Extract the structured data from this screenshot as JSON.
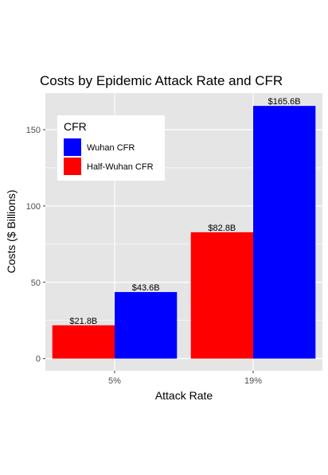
{
  "chart_data": {
    "type": "bar",
    "title": "Costs by Epidemic Attack Rate and CFR",
    "xlabel": "Attack Rate",
    "ylabel": "Costs ($ Billions)",
    "categories": [
      "5%",
      "19%"
    ],
    "ylim": [
      -8,
      174
    ],
    "yticks": [
      0,
      50,
      100,
      150
    ],
    "grid": true,
    "legend": {
      "title": "CFR",
      "placement": "top-left"
    },
    "series": [
      {
        "name": "Half-Wuhan CFR",
        "color": "#ff0000",
        "values": [
          21.8,
          82.8
        ],
        "labels": [
          "$21.8B",
          "$82.8B"
        ]
      },
      {
        "name": "Wuhan CFR",
        "color": "#0000ff",
        "values": [
          43.6,
          165.6
        ],
        "labels": [
          "$43.6B",
          "$165.6B"
        ]
      }
    ],
    "legend_order": [
      "Wuhan CFR",
      "Half-Wuhan CFR"
    ],
    "panel_background": "#e5e5e5",
    "grid_color": "#ffffff"
  }
}
